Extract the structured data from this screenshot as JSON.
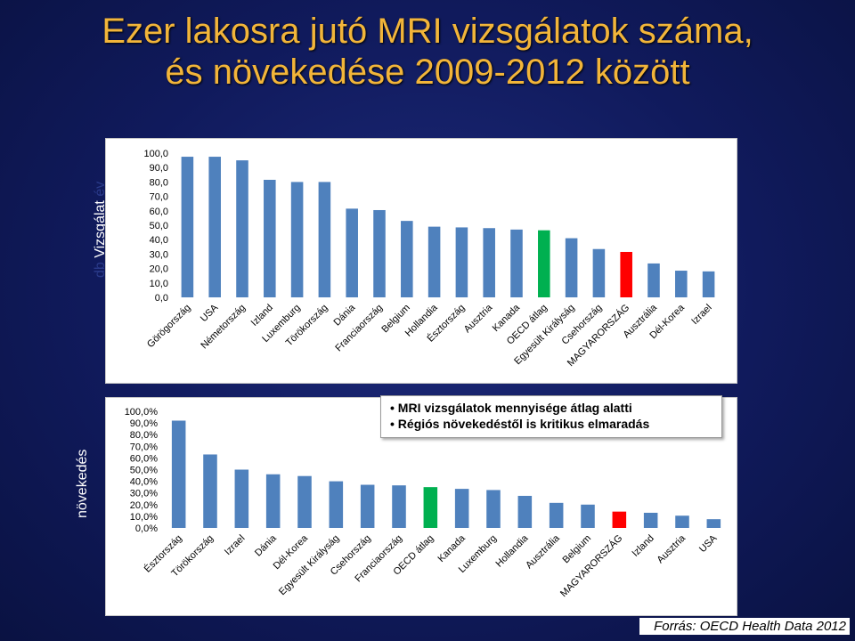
{
  "title": {
    "line1": "Ezer lakosra jutó MRI vizsgálatok száma,",
    "line2": "és  növekedése 2009-2012 között"
  },
  "chart1": {
    "ylabel_main": "Vizsgálat",
    "ylabel_left": "db",
    "ylabel_right": "év"
  },
  "chart2": {
    "ylabel": "növekedés"
  },
  "callout": {
    "items": [
      "MRI vizsgálatok mennyisége átlag alatti",
      "Régiós növekedéstől  is kritikus  elmaradás"
    ]
  },
  "source": "Forrás: OECD Health Data 2012",
  "colors": {
    "bar": "#4f81bd",
    "oecd": "#00b050",
    "hungary": "#ff0000"
  },
  "chart_data": [
    {
      "type": "bar",
      "categories": [
        "Görögország",
        "USA",
        "Németország",
        "Izland",
        "Luxemburg",
        "Törökország",
        "Dánia",
        "Franciaország",
        "Belgium",
        "Hollandia",
        "Észtország",
        "Ausztria",
        "Kanada",
        "OECD átlag",
        "Egyesült Királyság",
        "Csehország",
        "MAGYARORSZÁG",
        "Ausztrália",
        "Dél-Korea",
        "Izrael"
      ],
      "values": [
        97.5,
        97.5,
        95.0,
        81.5,
        80.0,
        80.0,
        61.5,
        60.5,
        53.0,
        49.0,
        48.5,
        48.0,
        47.0,
        46.5,
        41.0,
        33.5,
        31.5,
        23.5,
        18.5,
        18.0
      ],
      "highlight": {
        "OECD átlag": "oecd",
        "MAGYARORSZÁG": "hungary"
      },
      "ylim": [
        0,
        100
      ],
      "yticks": [
        "0,0",
        "10,0",
        "20,0",
        "30,0",
        "40,0",
        "50,0",
        "60,0",
        "70,0",
        "80,0",
        "90,0",
        "100,0"
      ],
      "grid": false
    },
    {
      "type": "bar",
      "categories": [
        "Észtország",
        "Törökország",
        "Izrael",
        "Dánia",
        "Dél-Korea",
        "Egyesült Királyság",
        "Csehország",
        "Franciaország",
        "OECD átlag",
        "Kanada",
        "Luxemburg",
        "Hollandia",
        "Ausztrália",
        "Belgium",
        "MAGYARORSZÁG",
        "Izland",
        "Ausztria",
        "USA"
      ],
      "values": [
        92.0,
        63.0,
        50.0,
        46.0,
        44.5,
        40.0,
        37.0,
        36.5,
        35.0,
        33.5,
        32.5,
        27.5,
        21.5,
        20.0,
        14.0,
        13.0,
        10.5,
        7.5
      ],
      "highlight": {
        "OECD átlag": "oecd",
        "MAGYARORSZÁG": "hungary"
      },
      "ylim": [
        0,
        100
      ],
      "yticks": [
        "0,0%",
        "10,0%",
        "20,0%",
        "30,0%",
        "40,0%",
        "50,0%",
        "60,0%",
        "70,0%",
        "80,0%",
        "90,0%",
        "100,0%"
      ],
      "grid": false
    }
  ]
}
